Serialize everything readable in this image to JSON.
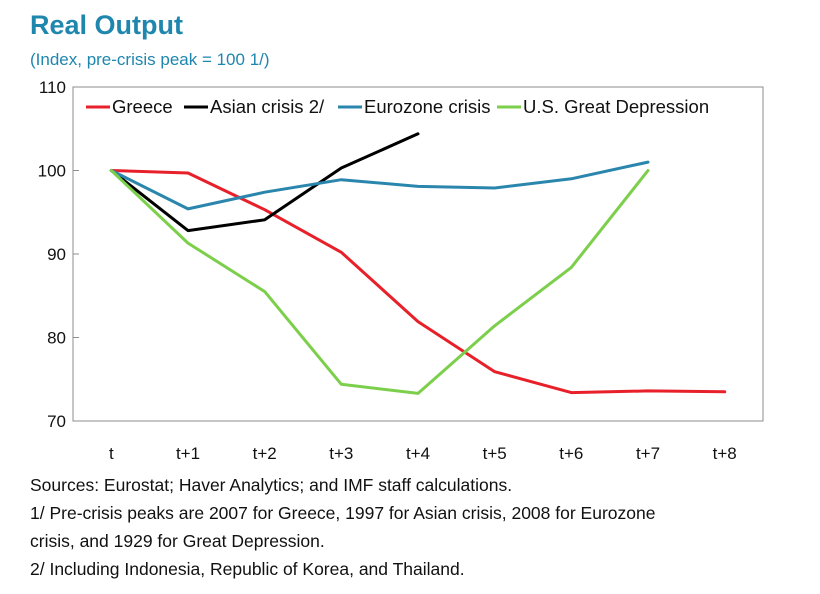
{
  "title": "Real Output",
  "subtitle": "(Index, pre-crisis peak = 100 1/)",
  "chart_data": {
    "type": "line",
    "title": "Real Output",
    "subtitle": "(Index, pre-crisis peak = 100 1/)",
    "categories": [
      "t",
      "t+1",
      "t+2",
      "t+3",
      "t+4",
      "t+5",
      "t+6",
      "t+7",
      "t+8"
    ],
    "ylim": [
      70,
      110
    ],
    "yticks": [
      70,
      80,
      90,
      100,
      110
    ],
    "grid": false,
    "legend_position": "top",
    "series": [
      {
        "name": "Greece",
        "color": "#e8202a",
        "values": [
          100,
          99.7,
          95.3,
          90.2,
          81.9,
          75.9,
          73.4,
          73.6,
          73.5
        ]
      },
      {
        "name": "Asian crisis 2/",
        "color": "#000000",
        "values": [
          100,
          92.8,
          94.1,
          100.3,
          104.4,
          null,
          null,
          null,
          null
        ]
      },
      {
        "name": "Eurozone crisis",
        "color": "#2b86ad",
        "values": [
          100,
          95.4,
          97.4,
          98.9,
          98.1,
          97.9,
          99.0,
          101.0,
          null
        ]
      },
      {
        "name": "U.S. Great Depression",
        "color": "#7ccf4b",
        "values": [
          100,
          91.3,
          85.5,
          74.4,
          73.3,
          81.4,
          88.4,
          100.0,
          null
        ]
      }
    ]
  },
  "notes": [
    "Sources: Eurostat; Haver Analytics; and IMF staff calculations.",
    "1/ Pre-crisis peaks are 2007 for Greece, 1997 for Asian crisis, 2008 for Eurozone",
    "crisis, and 1929 for Great Depression.",
    "2/ Including Indonesia, Republic of Korea, and Thailand."
  ]
}
